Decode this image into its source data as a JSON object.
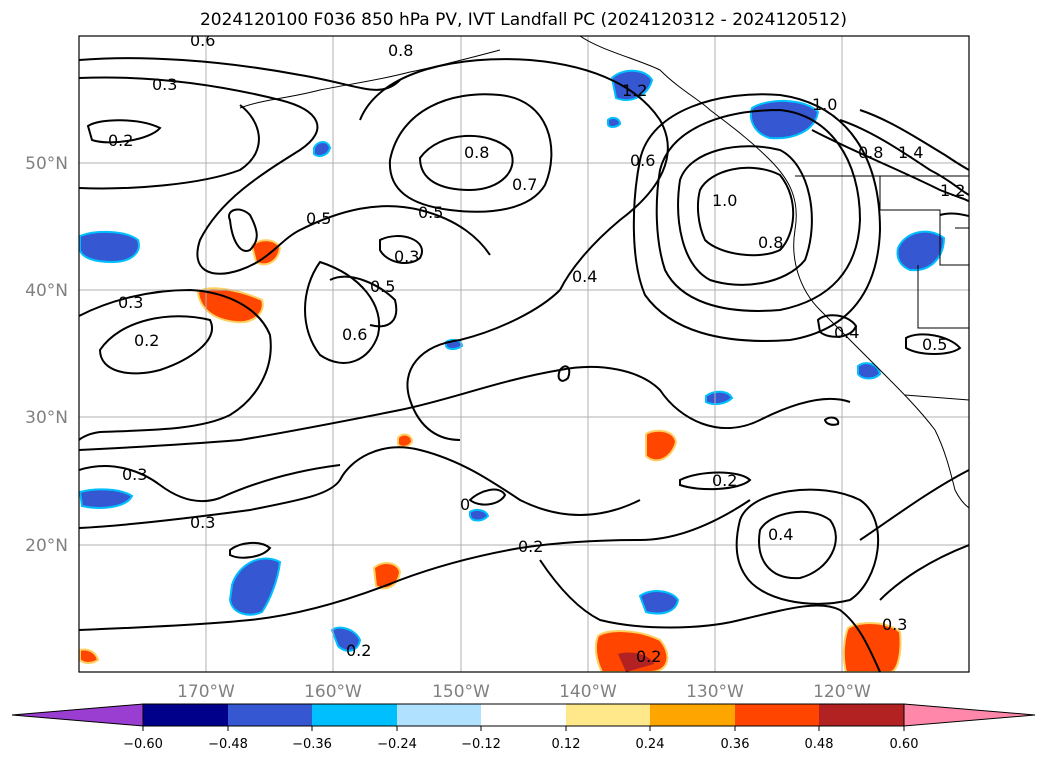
{
  "title": "2024120100 F036 850 hPa PV, IVT Landfall PC (2024120312 - 2024120512)",
  "axes": {
    "lat_ticks": [
      "20°N",
      "30°N",
      "40°N",
      "50°N"
    ],
    "lon_ticks": [
      "170°W",
      "160°W",
      "150°W",
      "140°W",
      "130°W",
      "120°W"
    ]
  },
  "contour_labels": [
    "0.6",
    "0.8",
    "0.3",
    "0.2",
    "0.7",
    "0.8",
    "0.6",
    "1.2",
    "1.0",
    "0.8",
    "1.4",
    "1.2",
    "0.5",
    "0.5",
    "0.3",
    "0.4",
    "1.0",
    "0.8",
    "0.5",
    "0.3",
    "0.6",
    "0.2",
    "0.4",
    "0.5",
    "0.3",
    "0.3",
    "0",
    "0.2",
    "0.2",
    "0.4",
    "0.2",
    "0.3",
    "0.2"
  ],
  "colorbar": {
    "tick_labels": [
      "−0.60",
      "−0.48",
      "−0.36",
      "−0.24",
      "−0.12",
      "0.12",
      "0.24",
      "0.36",
      "0.48",
      "0.60"
    ],
    "colors": [
      "#9a3dd1",
      "#00008b",
      "#3557d1",
      "#00bfff",
      "#b0e2ff",
      "#ffffff",
      "#ffe88a",
      "#ffa500",
      "#ff4500",
      "#b22222",
      "#ff88aa"
    ]
  },
  "chart_data": {
    "type": "map",
    "title": "2024120100 F036 850 hPa PV, IVT Landfall PC (2024120312 - 2024120512)",
    "lon_range": [
      -180,
      -110
    ],
    "lat_range": [
      10,
      60
    ],
    "grid": true,
    "colorbar_levels": [
      -0.6,
      -0.48,
      -0.36,
      -0.24,
      -0.12,
      0.12,
      0.24,
      0.36,
      0.48,
      0.6
    ]
  }
}
